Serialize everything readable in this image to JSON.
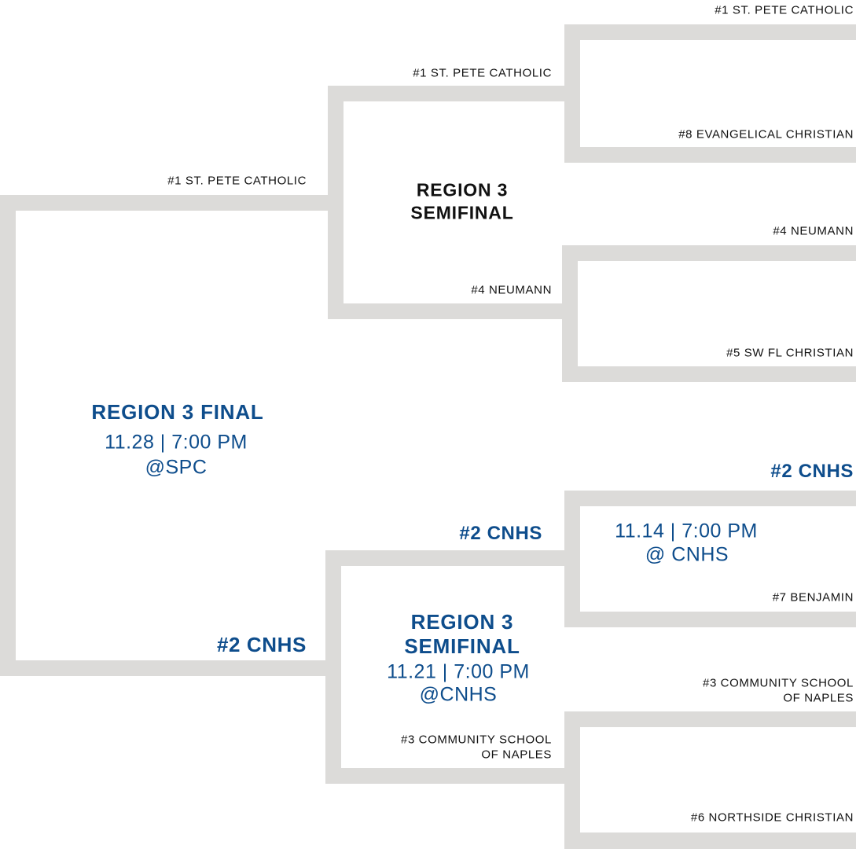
{
  "colors": {
    "line": "#dcdbd9",
    "accent": "#0e4d8c",
    "text": "#111111"
  },
  "first_round": [
    {
      "top": "#1 ST. PETE CATHOLIC",
      "bottom": "#8 EVANGELICAL CHRISTIAN"
    },
    {
      "top": "#4 NEUMANN",
      "bottom": "#5 SW FL CHRISTIAN"
    },
    {
      "top": "#2 CNHS",
      "bottom": "#7 BENJAMIN",
      "date": "11.14 | 7:00 PM",
      "venue": "@ CNHS"
    },
    {
      "top_line1": "#3 COMMUNITY SCHOOL",
      "top_line2": "OF NAPLES",
      "bottom": "#6 NORTHSIDE CHRISTIAN"
    }
  ],
  "semifinals": [
    {
      "top": "#1 ST. PETE CATHOLIC",
      "bottom": "#4 NEUMANN",
      "title_line1": "REGION 3",
      "title_line2": "SEMIFINAL"
    },
    {
      "top": "#2 CNHS",
      "bottom_line1": "#3 COMMUNITY SCHOOL",
      "bottom_line2": "OF NAPLES",
      "title_line1": "REGION 3",
      "title_line2": "SEMIFINAL",
      "date": "11.21 | 7:00 PM",
      "venue": "@CNHS"
    }
  ],
  "final": {
    "top": "#1 ST. PETE CATHOLIC",
    "bottom": "#2 CNHS",
    "title": "REGION 3 FINAL",
    "date": "11.28 | 7:00 PM",
    "venue": "@SPC"
  }
}
